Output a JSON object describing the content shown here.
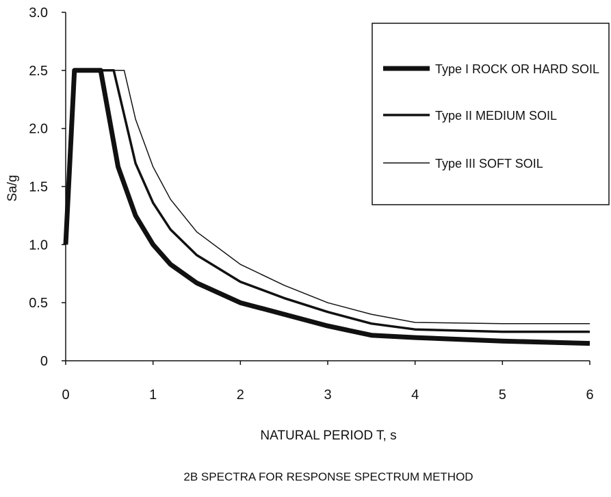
{
  "chart_data": {
    "type": "line",
    "title": "",
    "xlabel": "NATURAL PERIOD T, s",
    "ylabel": "Sa/g",
    "caption": "2B SPECTRA FOR RESPONSE SPECTRUM METHOD",
    "xlim": [
      0,
      6
    ],
    "ylim": [
      0,
      3
    ],
    "x_ticks": [
      "0",
      "1",
      "2",
      "3",
      "4",
      "5",
      "6"
    ],
    "y_ticks": [
      "0",
      "0.5",
      "1.0",
      "1.5",
      "2.0",
      "2.5",
      "3.0"
    ],
    "grid": false,
    "legend_position": "top-right",
    "series": [
      {
        "name": "Type I  ROCK OR HARD SOIL",
        "x": [
          0,
          0.1,
          0.4,
          0.6,
          0.8,
          1.0,
          1.2,
          1.5,
          2.0,
          2.5,
          3.0,
          3.5,
          4.0,
          5.0,
          6.0
        ],
        "y": [
          1.0,
          2.5,
          2.5,
          1.67,
          1.25,
          1.0,
          0.83,
          0.67,
          0.5,
          0.4,
          0.3,
          0.22,
          0.2,
          0.17,
          0.15
        ],
        "stroke_width": 7
      },
      {
        "name": "Type II  MEDIUM SOIL",
        "x": [
          0.1,
          0.55,
          0.8,
          1.0,
          1.2,
          1.5,
          2.0,
          2.5,
          3.0,
          3.5,
          4.0,
          5.0,
          6.0
        ],
        "y": [
          2.5,
          2.5,
          1.7,
          1.36,
          1.13,
          0.91,
          0.68,
          0.54,
          0.42,
          0.32,
          0.27,
          0.25,
          0.25
        ],
        "stroke_width": 3.5
      },
      {
        "name": "Type III  SOFT SOIL",
        "x": [
          0.1,
          0.67,
          0.8,
          1.0,
          1.2,
          1.5,
          2.0,
          2.5,
          3.0,
          3.5,
          4.0,
          5.0,
          6.0
        ],
        "y": [
          2.5,
          2.5,
          2.08,
          1.67,
          1.39,
          1.11,
          0.83,
          0.65,
          0.5,
          0.4,
          0.33,
          0.32,
          0.32
        ],
        "stroke_width": 1.5
      }
    ]
  }
}
